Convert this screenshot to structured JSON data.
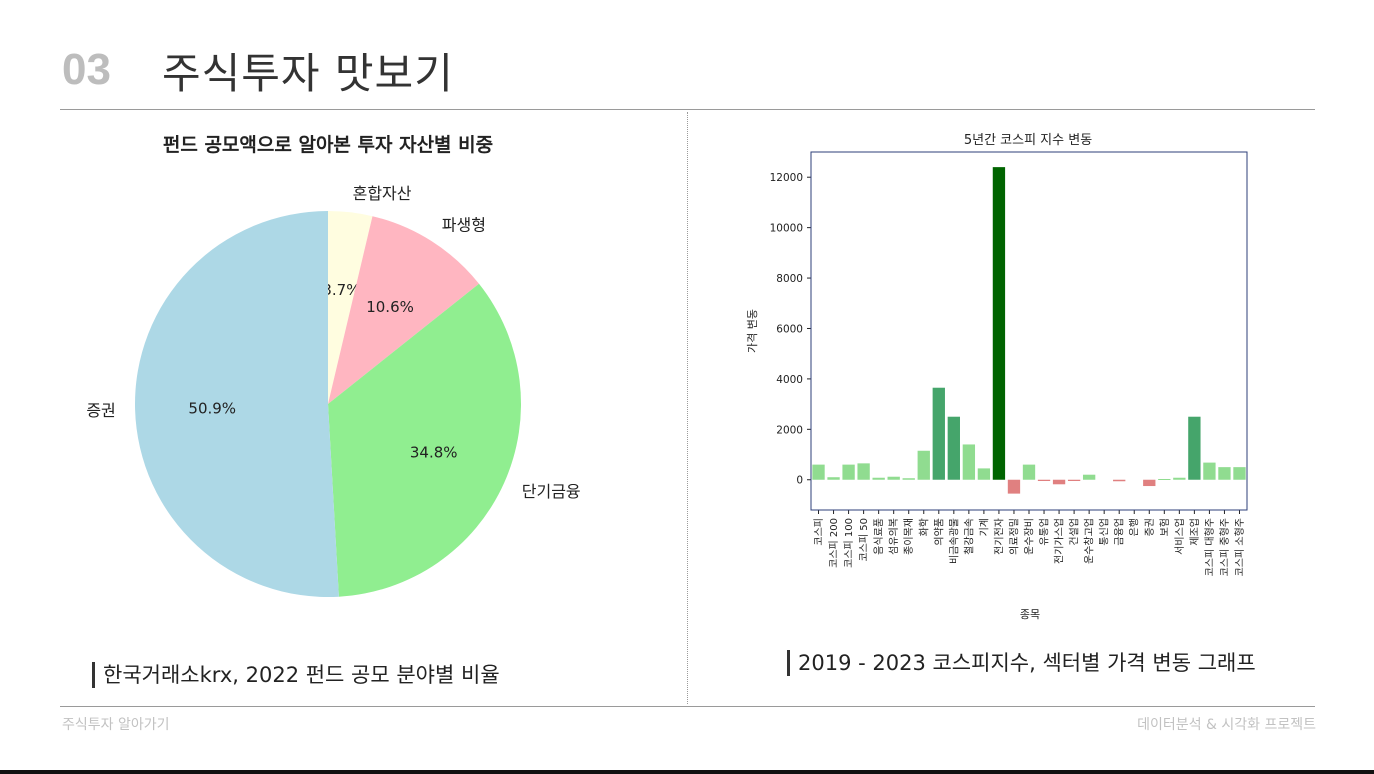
{
  "header": {
    "section_number": "03",
    "title": "주식투자 맛보기"
  },
  "left": {
    "caption": "한국거래소krx, 2022 펀드 공모 분야별 비율",
    "chart_data": {
      "type": "pie",
      "title": "펀드 공모액으로 알아본 투자 자산별 비중",
      "slices": [
        {
          "label": "혼합자산",
          "value": 3.7,
          "pct_label": "3.7%",
          "color": "#fffde0"
        },
        {
          "label": "파생형",
          "value": 10.6,
          "pct_label": "10.6%",
          "color": "#ffb6c1"
        },
        {
          "label": "단기금융",
          "value": 34.8,
          "pct_label": "34.8%",
          "color": "#90ee90"
        },
        {
          "label": "증권",
          "value": 50.9,
          "pct_label": "50.9%",
          "color": "#add8e6"
        }
      ]
    }
  },
  "right": {
    "caption": "2019 - 2023 코스피지수, 섹터별 가격 변동 그래프",
    "chart_data": {
      "type": "bar",
      "title": "5년간 코스피 지수 변동",
      "xlabel": "종목",
      "ylabel": "가격 변동",
      "ylim": [
        -1200,
        13000
      ],
      "yticks": [
        0,
        2000,
        4000,
        6000,
        8000,
        10000,
        12000
      ],
      "categories": [
        "코스피",
        "코스피 200",
        "코스피 100",
        "코스피 50",
        "음식료품",
        "섬유의복",
        "종이목재",
        "화학",
        "의약품",
        "비금속광물",
        "철강금속",
        "기계",
        "전기전자",
        "의료정밀",
        "운수장비",
        "유통업",
        "전기가스업",
        "건설업",
        "운수창고업",
        "통신업",
        "금융업",
        "은행",
        "증권",
        "보험",
        "서비스업",
        "제조업",
        "코스피 대형주",
        "코스피 중형주",
        "코스피 소형주"
      ],
      "values": [
        600,
        100,
        600,
        650,
        80,
        120,
        60,
        1150,
        3650,
        2500,
        1400,
        450,
        12400,
        -550,
        600,
        -50,
        -180,
        -50,
        200,
        0,
        -60,
        0,
        -250,
        30,
        80,
        2500,
        680,
        500,
        500
      ],
      "colors": {
        "low": "#90dc90",
        "mid": "#45a56b",
        "high": "#006400",
        "negative": "#e08080"
      }
    }
  },
  "footer": {
    "left": "주식투자 알아가기",
    "right": "데이터분석 & 시각화 프로젝트"
  }
}
